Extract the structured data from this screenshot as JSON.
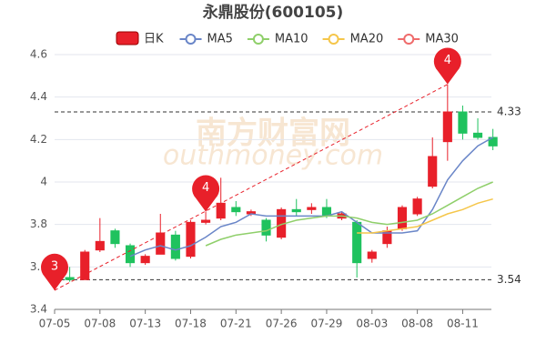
{
  "chart_data": {
    "type": "candlestick",
    "title": "永鼎股份(600105)",
    "watermark": [
      "南方财富网",
      "outhmoney.com"
    ],
    "categories": [
      "07-05",
      null,
      null,
      "07-08",
      null,
      null,
      "07-13",
      null,
      null,
      "07-18",
      null,
      null,
      "07-21",
      null,
      null,
      "07-26",
      null,
      null,
      "07-29",
      null,
      null,
      "08-03",
      null,
      null,
      "08-08",
      null,
      null,
      "08-11",
      null,
      null
    ],
    "candles": {
      "name": "日K",
      "up_color": "#e8202a",
      "down_color": "#1fc25e",
      "open": [
        3.55,
        3.55,
        3.54,
        3.68,
        3.77,
        3.7,
        3.62,
        3.66,
        3.75,
        3.65,
        3.81,
        3.83,
        3.88,
        3.85,
        3.82,
        3.74,
        3.87,
        3.87,
        3.88,
        3.83,
        3.81,
        3.64,
        3.71,
        3.78,
        3.85,
        3.98,
        4.19,
        4.33,
        4.23,
        4.21
      ],
      "close": [
        3.56,
        3.54,
        3.67,
        3.72,
        3.71,
        3.62,
        3.65,
        3.76,
        3.64,
        3.81,
        3.82,
        3.9,
        3.86,
        3.86,
        3.75,
        3.87,
        3.86,
        3.88,
        3.84,
        3.85,
        3.62,
        3.67,
        3.77,
        3.88,
        3.92,
        4.12,
        4.33,
        4.23,
        4.21,
        4.17
      ],
      "high": [
        3.58,
        3.6,
        3.68,
        3.83,
        3.78,
        3.71,
        3.66,
        3.85,
        3.77,
        3.82,
        3.86,
        4.02,
        3.91,
        3.87,
        3.83,
        3.88,
        3.92,
        3.9,
        3.92,
        3.86,
        3.82,
        3.68,
        3.79,
        3.89,
        3.93,
        4.21,
        4.46,
        4.36,
        4.3,
        4.25
      ],
      "low": [
        3.49,
        3.53,
        3.54,
        3.67,
        3.69,
        3.6,
        3.61,
        3.66,
        3.63,
        3.64,
        3.8,
        3.82,
        3.84,
        3.84,
        3.72,
        3.73,
        3.84,
        3.85,
        3.83,
        3.82,
        3.55,
        3.62,
        3.69,
        3.77,
        3.84,
        3.97,
        4.1,
        4.2,
        4.2,
        4.15
      ]
    },
    "series": [
      {
        "name": "MA5",
        "color": "#6a86c8",
        "values": [
          null,
          null,
          null,
          null,
          null,
          3.65,
          3.68,
          3.7,
          3.68,
          3.7,
          3.74,
          3.79,
          3.81,
          3.85,
          3.84,
          3.84,
          3.84,
          3.84,
          3.84,
          3.86,
          3.81,
          3.76,
          3.76,
          3.76,
          3.77,
          3.87,
          4.01,
          4.1,
          4.17,
          4.21
        ]
      },
      {
        "name": "MA10",
        "color": "#8fcf6a",
        "values": [
          null,
          null,
          null,
          null,
          null,
          null,
          null,
          null,
          null,
          null,
          3.7,
          3.73,
          3.75,
          3.76,
          3.77,
          3.8,
          3.82,
          3.83,
          3.84,
          3.84,
          3.83,
          3.81,
          3.8,
          3.81,
          3.82,
          3.85,
          3.89,
          3.93,
          3.97,
          4.0
        ]
      },
      {
        "name": "MA20",
        "color": "#f5c64a",
        "values": [
          null,
          null,
          null,
          null,
          null,
          null,
          null,
          null,
          null,
          null,
          null,
          null,
          null,
          null,
          null,
          null,
          null,
          null,
          null,
          null,
          3.76,
          3.76,
          3.77,
          3.78,
          3.79,
          3.82,
          3.85,
          3.87,
          3.9,
          3.92
        ]
      },
      {
        "name": "MA30",
        "color": "#ef6b6b",
        "values": [
          null,
          null,
          null,
          null,
          null,
          null,
          null,
          null,
          null,
          null,
          null,
          null,
          null,
          null,
          null,
          null,
          null,
          null,
          null,
          null,
          null,
          null,
          null,
          null,
          null,
          null,
          null,
          null,
          null,
          null
        ]
      }
    ],
    "hlines": [
      4.33,
      3.54
    ],
    "markers": [
      {
        "point": 0,
        "at": "low",
        "label": "3"
      },
      {
        "point": 10,
        "at": "high",
        "label": "4"
      },
      {
        "point": 26,
        "at": "high",
        "label": "4"
      }
    ],
    "ylim": [
      3.4,
      4.6
    ],
    "yticks": [
      3.4,
      3.6,
      3.8,
      4,
      4.2,
      4.4,
      4.6
    ],
    "grid": true
  }
}
